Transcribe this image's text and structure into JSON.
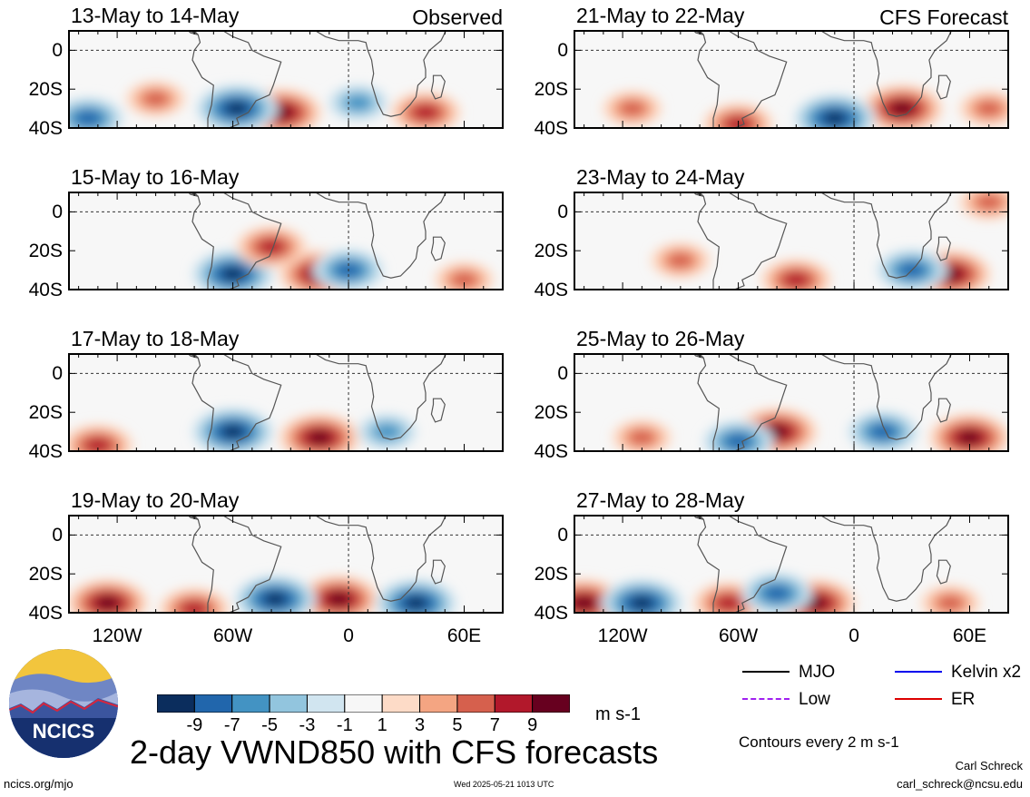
{
  "colors": {
    "scale": [
      "#0b2d5d",
      "#2166ac",
      "#4393c3",
      "#92c5de",
      "#d1e5f0",
      "#f7f7f7",
      "#fddbc7",
      "#f4a582",
      "#d6604d",
      "#b2182b",
      "#67001f"
    ],
    "land_outline": "#555555",
    "logo_text": "#ffffff"
  },
  "chart_data": {
    "type": "heatmap",
    "variable": "VWND850",
    "title": "2-day VWND850 with CFS forecasts",
    "units": "m s-1",
    "colorbar_ticks": [
      -9,
      -7,
      -5,
      -3,
      -1,
      1,
      3,
      5,
      7,
      9
    ],
    "lat_ticks": [
      "0",
      "20S",
      "40S"
    ],
    "lon_ticks": [
      "120W",
      "60W",
      "0",
      "60E"
    ],
    "lat_range": [
      10,
      -40
    ],
    "lon_range": [
      -145,
      80
    ],
    "panels": [
      {
        "date_range": "13-May to 14-May",
        "label": "Observed",
        "column": "left",
        "row": 0,
        "features": [
          {
            "lon": -35,
            "lat": -32,
            "value": 9
          },
          {
            "lon": -58,
            "lat": -30,
            "value": -9
          },
          {
            "lon": 40,
            "lat": -32,
            "value": 7
          },
          {
            "lon": -100,
            "lat": -25,
            "value": 5
          },
          {
            "lon": -135,
            "lat": -35,
            "value": -7
          },
          {
            "lon": 5,
            "lat": -27,
            "value": -5
          }
        ]
      },
      {
        "date_range": "15-May to 16-May",
        "label": "",
        "column": "left",
        "row": 1,
        "features": [
          {
            "lon": -15,
            "lat": -32,
            "value": 9
          },
          {
            "lon": 0,
            "lat": -30,
            "value": -7
          },
          {
            "lon": -60,
            "lat": -32,
            "value": -9
          },
          {
            "lon": -40,
            "lat": -18,
            "value": 7
          },
          {
            "lon": 60,
            "lat": -35,
            "value": 5
          }
        ]
      },
      {
        "date_range": "17-May to 18-May",
        "label": "",
        "column": "left",
        "row": 2,
        "features": [
          {
            "lon": -15,
            "lat": -33,
            "value": 9
          },
          {
            "lon": -60,
            "lat": -30,
            "value": -9
          },
          {
            "lon": -130,
            "lat": -37,
            "value": 7
          },
          {
            "lon": 20,
            "lat": -30,
            "value": -5
          }
        ]
      },
      {
        "date_range": "19-May to 20-May",
        "label": "",
        "column": "left",
        "row": 3,
        "features": [
          {
            "lon": -125,
            "lat": -35,
            "value": 9
          },
          {
            "lon": -5,
            "lat": -33,
            "value": 9
          },
          {
            "lon": -38,
            "lat": -33,
            "value": -9
          },
          {
            "lon": 35,
            "lat": -35,
            "value": -9
          },
          {
            "lon": -80,
            "lat": -38,
            "value": 7
          }
        ]
      },
      {
        "date_range": "21-May to 22-May",
        "label": "CFS Forecast",
        "column": "right",
        "row": 0,
        "features": [
          {
            "lon": 25,
            "lat": -30,
            "value": 9
          },
          {
            "lon": -10,
            "lat": -35,
            "value": -9
          },
          {
            "lon": -60,
            "lat": -38,
            "value": 7
          },
          {
            "lon": 70,
            "lat": -30,
            "value": 5
          },
          {
            "lon": -115,
            "lat": -30,
            "value": 5
          }
        ]
      },
      {
        "date_range": "23-May to 24-May",
        "label": "",
        "column": "right",
        "row": 1,
        "features": [
          {
            "lon": 50,
            "lat": -32,
            "value": 9
          },
          {
            "lon": 30,
            "lat": -30,
            "value": -7
          },
          {
            "lon": -30,
            "lat": -35,
            "value": 7
          },
          {
            "lon": -90,
            "lat": -25,
            "value": 5
          },
          {
            "lon": 70,
            "lat": 5,
            "value": 5
          }
        ]
      },
      {
        "date_range": "25-May to 26-May",
        "label": "",
        "column": "right",
        "row": 2,
        "features": [
          {
            "lon": -40,
            "lat": -30,
            "value": 9
          },
          {
            "lon": 60,
            "lat": -33,
            "value": 9
          },
          {
            "lon": -60,
            "lat": -35,
            "value": -7
          },
          {
            "lon": 15,
            "lat": -30,
            "value": -7
          },
          {
            "lon": -110,
            "lat": -33,
            "value": 5
          }
        ]
      },
      {
        "date_range": "27-May to 28-May",
        "label": "",
        "column": "right",
        "row": 3,
        "features": [
          {
            "lon": -140,
            "lat": -35,
            "value": 9
          },
          {
            "lon": -110,
            "lat": -35,
            "value": -9
          },
          {
            "lon": -65,
            "lat": -35,
            "value": 7
          },
          {
            "lon": -20,
            "lat": -35,
            "value": 9
          },
          {
            "lon": -40,
            "lat": -30,
            "value": -7
          },
          {
            "lon": 50,
            "lat": -35,
            "value": 5
          }
        ]
      }
    ]
  },
  "legend": {
    "items": [
      {
        "label": "MJO",
        "color": "#000000"
      },
      {
        "label": "Kelvin x2",
        "color": "#0000ee"
      },
      {
        "label": "Low",
        "color": "#a020f0"
      },
      {
        "label": "ER",
        "color": "#dd0000"
      }
    ],
    "contours_note": "Contours every 2 m s-1"
  },
  "logo": {
    "text": "NCICS"
  },
  "footer": {
    "url": "ncics.org/mjo",
    "timestamp": "Wed 2025-05-21 1013 UTC",
    "author": "Carl Schreck",
    "email": "carl_schreck@ncsu.edu"
  }
}
